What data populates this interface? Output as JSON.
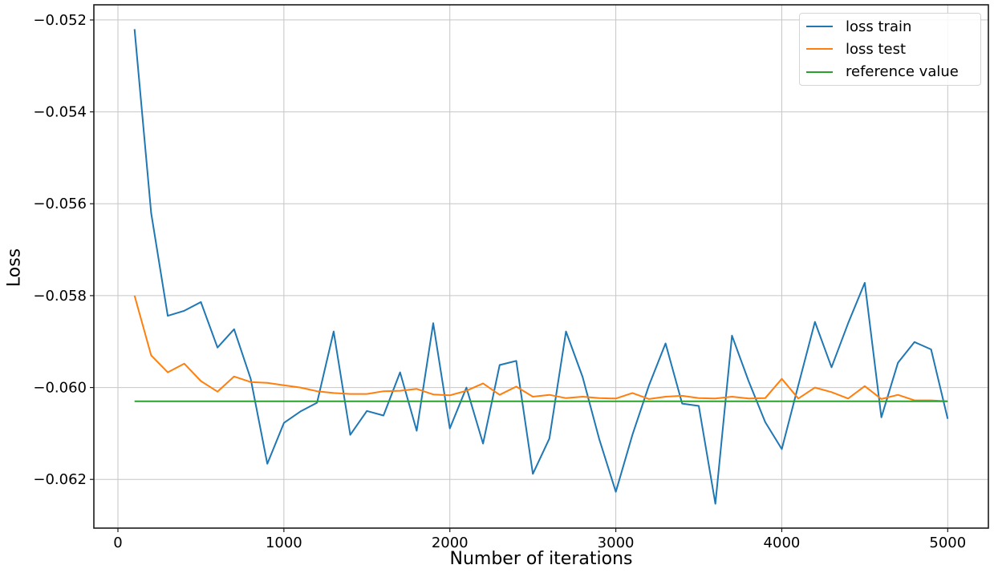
{
  "figure": {
    "background": "#ffffff",
    "text_color": "#000000"
  },
  "chart_data": {
    "type": "line",
    "title": "",
    "xlabel": "Number of iterations",
    "ylabel": "Loss",
    "x": [
      100,
      200,
      300,
      400,
      500,
      600,
      700,
      800,
      900,
      1000,
      1100,
      1200,
      1300,
      1400,
      1500,
      1600,
      1700,
      1800,
      1900,
      2000,
      2100,
      2200,
      2300,
      2400,
      2500,
      2600,
      2700,
      2800,
      2900,
      3000,
      3100,
      3200,
      3300,
      3400,
      3500,
      3600,
      3700,
      3800,
      3900,
      4000,
      4100,
      4200,
      4300,
      4400,
      4500,
      4600,
      4700,
      4800,
      4900,
      5000
    ],
    "series": [
      {
        "name": "loss train",
        "color": "#1f77b4",
        "values": [
          -0.0522,
          -0.0562,
          -0.05844,
          -0.05833,
          -0.05814,
          -0.05913,
          -0.05873,
          -0.05981,
          -0.06166,
          -0.06077,
          -0.06052,
          -0.06033,
          -0.05878,
          -0.06103,
          -0.06051,
          -0.06061,
          -0.05967,
          -0.06094,
          -0.0586,
          -0.06089,
          -0.06,
          -0.06122,
          -0.05951,
          -0.05942,
          -0.06188,
          -0.06111,
          -0.05878,
          -0.05977,
          -0.06112,
          -0.06227,
          -0.06103,
          -0.05995,
          -0.05904,
          -0.06035,
          -0.0604,
          -0.06253,
          -0.05887,
          -0.05986,
          -0.06075,
          -0.06134,
          -0.05995,
          -0.05857,
          -0.05956,
          -0.0586,
          -0.05772,
          -0.06065,
          -0.05946,
          -0.05901,
          -0.05917,
          -0.06068
        ]
      },
      {
        "name": "loss test",
        "color": "#ff7f0e",
        "values": [
          -0.058,
          -0.0593,
          -0.05967,
          -0.05948,
          -0.05986,
          -0.06009,
          -0.05976,
          -0.05988,
          -0.0599,
          -0.05995,
          -0.06,
          -0.06008,
          -0.06012,
          -0.06014,
          -0.06014,
          -0.06008,
          -0.06007,
          -0.06003,
          -0.06015,
          -0.06017,
          -0.06007,
          -0.05991,
          -0.06016,
          -0.05998,
          -0.0602,
          -0.06016,
          -0.06023,
          -0.0602,
          -0.06023,
          -0.06024,
          -0.06012,
          -0.06025,
          -0.0602,
          -0.06018,
          -0.06023,
          -0.06024,
          -0.0602,
          -0.06024,
          -0.06023,
          -0.05981,
          -0.06024,
          -0.06,
          -0.0601,
          -0.06024,
          -0.05997,
          -0.06025,
          -0.06016,
          -0.06028,
          -0.06028,
          -0.0603
        ]
      },
      {
        "name": "reference value",
        "color": "#2ca02c",
        "constant": -0.0603
      }
    ],
    "xlim": [
      -145,
      5245
    ],
    "ylim": [
      -0.06306,
      -0.05167
    ],
    "xticks": [
      0,
      1000,
      2000,
      3000,
      4000,
      5000
    ],
    "xtick_labels": [
      "0",
      "1000",
      "2000",
      "3000",
      "4000",
      "5000"
    ],
    "yticks": [
      -0.052,
      -0.054,
      -0.056,
      -0.058,
      -0.06,
      -0.062
    ],
    "ytick_labels": [
      "−0.052",
      "−0.054",
      "−0.056",
      "−0.058",
      "−0.060",
      "−0.062"
    ],
    "grid": true,
    "grid_color": "#c6c6c6",
    "spine_color": "#1a1a1a",
    "tick_fontsize": "18",
    "legend": {
      "position": "upper right"
    }
  }
}
